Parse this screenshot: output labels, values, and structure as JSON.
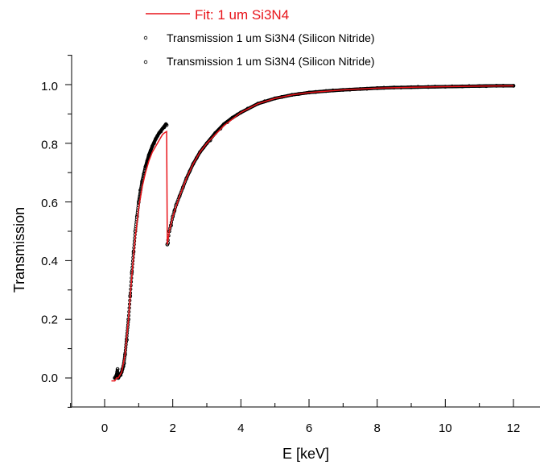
{
  "chart_data": {
    "type": "scatter",
    "xlabel": "E [keV]",
    "ylabel": "Transmission",
    "xlim": [
      -1,
      12.8
    ],
    "ylim": [
      -0.12,
      1.1
    ],
    "xticks": [
      0,
      2,
      4,
      6,
      8,
      10,
      12
    ],
    "xtick_labels": [
      "0",
      "2",
      "4",
      "6",
      "8",
      "10",
      "12"
    ],
    "yticks": [
      0.0,
      0.2,
      0.4,
      0.6,
      0.8,
      1.0
    ],
    "ytick_labels": [
      "0.0",
      "0.2",
      "0.4",
      "0.6",
      "0.8",
      "1.0"
    ],
    "grid": false,
    "legend_position": "top",
    "colors": {
      "fit": "#e8141a",
      "data": "#000000"
    },
    "series": [
      {
        "name": "Fit: 1 um Si3N4",
        "kind": "line",
        "x": [
          0.2,
          0.3,
          0.35,
          0.4,
          0.45,
          0.5,
          0.6,
          0.7,
          0.8,
          0.9,
          1.0,
          1.1,
          1.2,
          1.3,
          1.4,
          1.5,
          1.6,
          1.7,
          1.75,
          1.82,
          1.84,
          1.9,
          2.0,
          2.2,
          2.4,
          2.6,
          2.8,
          3.0,
          3.5,
          4.0,
          4.5,
          5.0,
          5.5,
          6.0,
          7.0,
          8.0,
          9.0,
          10.0,
          11.0,
          12.0
        ],
        "y": [
          -0.01,
          -0.01,
          0.0,
          0.0,
          0.01,
          0.02,
          0.08,
          0.2,
          0.35,
          0.48,
          0.58,
          0.65,
          0.7,
          0.74,
          0.77,
          0.79,
          0.81,
          0.83,
          0.835,
          0.84,
          0.455,
          0.5,
          0.55,
          0.62,
          0.68,
          0.73,
          0.77,
          0.8,
          0.86,
          0.905,
          0.935,
          0.953,
          0.965,
          0.973,
          0.982,
          0.988,
          0.991,
          0.993,
          0.995,
          0.996
        ]
      },
      {
        "name": "Transmission 1 um Si3N4 (Silicon Nitride)",
        "kind": "points",
        "x": [
          0.3,
          0.35,
          0.38,
          0.4,
          0.45,
          0.5,
          0.55,
          0.6,
          0.7,
          0.8,
          0.9,
          1.0,
          1.1,
          1.2,
          1.3,
          1.4,
          1.5,
          1.6,
          1.7,
          1.8,
          1.84,
          1.9,
          2.0,
          2.1,
          2.2,
          2.4,
          2.6,
          2.8,
          3.0,
          3.25,
          3.5,
          3.75,
          4.0,
          4.5,
          5.0,
          5.5,
          6.0,
          6.5,
          7.0,
          7.5,
          8.0,
          8.5,
          9.0,
          9.5,
          10.0,
          10.5,
          11.0,
          11.5,
          12.0
        ],
        "y": [
          0.0,
          0.01,
          0.03,
          0.0,
          0.01,
          0.02,
          0.04,
          0.08,
          0.2,
          0.36,
          0.5,
          0.6,
          0.67,
          0.72,
          0.76,
          0.79,
          0.815,
          0.835,
          0.85,
          0.865,
          0.455,
          0.5,
          0.55,
          0.59,
          0.62,
          0.68,
          0.73,
          0.77,
          0.8,
          0.835,
          0.865,
          0.887,
          0.905,
          0.935,
          0.953,
          0.965,
          0.973,
          0.978,
          0.982,
          0.985,
          0.988,
          0.99,
          0.991,
          0.992,
          0.993,
          0.994,
          0.995,
          0.996,
          0.996
        ]
      },
      {
        "name": "Transmission 1 um Si3N4 (Silicon Nitride)",
        "kind": "points",
        "x": [
          0.32,
          0.37,
          0.42,
          0.47,
          0.52,
          0.57,
          0.65,
          0.75,
          0.85,
          0.95,
          1.05,
          1.15,
          1.25,
          1.35,
          1.45,
          1.55,
          1.65,
          1.75,
          1.82,
          1.86,
          1.95,
          2.05,
          2.3,
          2.5,
          2.7,
          2.9,
          3.1,
          3.4,
          3.6,
          3.9,
          4.2,
          4.7,
          5.2,
          5.7,
          6.2,
          6.7,
          7.2,
          7.7,
          8.2,
          8.7,
          9.2,
          9.7,
          10.2,
          10.7,
          11.2,
          11.7
        ],
        "y": [
          0.0,
          0.02,
          0.01,
          0.01,
          0.03,
          0.05,
          0.13,
          0.28,
          0.43,
          0.55,
          0.64,
          0.695,
          0.74,
          0.775,
          0.8,
          0.825,
          0.84,
          0.855,
          0.862,
          0.46,
          0.52,
          0.57,
          0.65,
          0.705,
          0.75,
          0.785,
          0.81,
          0.85,
          0.872,
          0.898,
          0.918,
          0.943,
          0.958,
          0.968,
          0.975,
          0.98,
          0.983,
          0.986,
          0.989,
          0.99,
          0.992,
          0.993,
          0.994,
          0.995,
          0.995,
          0.996
        ]
      }
    ]
  }
}
